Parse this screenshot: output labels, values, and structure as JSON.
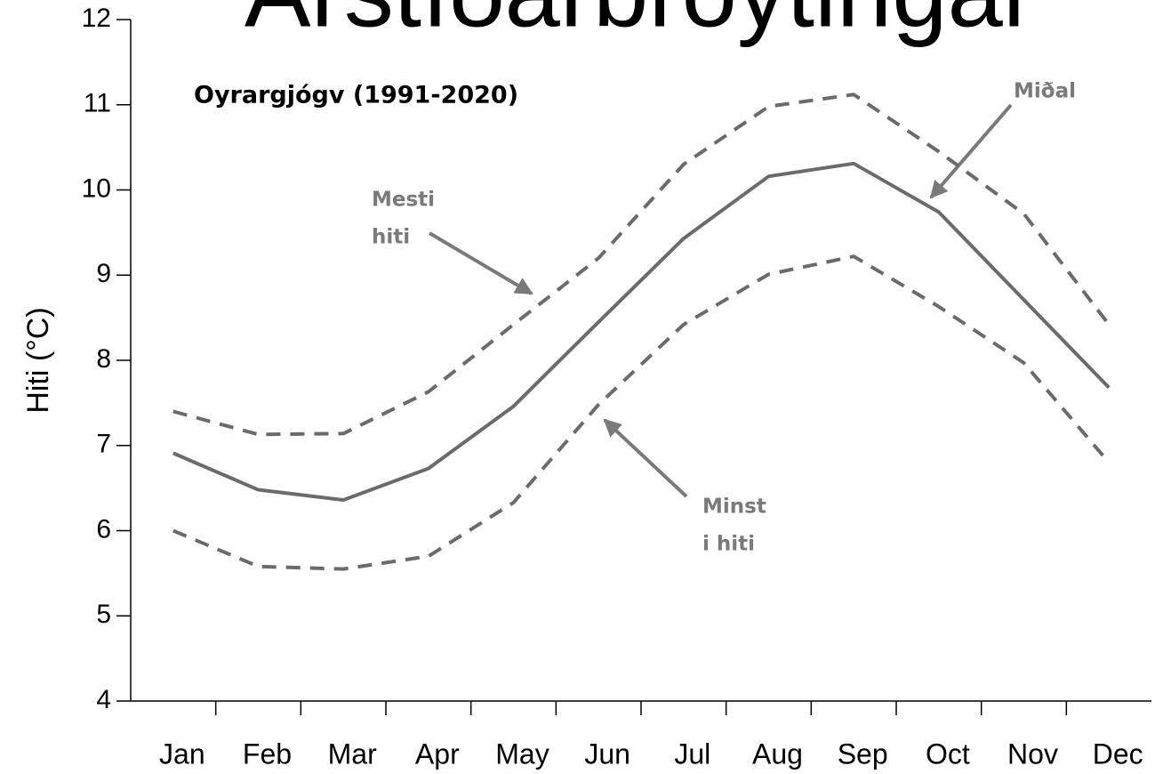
{
  "chart_data": {
    "type": "line",
    "title": "Árstíðarbroytingar",
    "subtitle": "Oyrargjógv (1991-2020)",
    "y_label": "Hiti (°C)",
    "categories": [
      "Jan",
      "Feb",
      "Mar",
      "Apr",
      "May",
      "Jun",
      "Jul",
      "Aug",
      "Sep",
      "Oct",
      "Nov",
      "Dec"
    ],
    "series": [
      {
        "name": "Mesti hiti",
        "color": "#6b6b6b",
        "dashed": true,
        "values": [
          7.4,
          7.13,
          7.14,
          7.63,
          8.42,
          9.2,
          10.3,
          10.98,
          11.12,
          10.45,
          9.72,
          8.42
        ]
      },
      {
        "name": "Miðal",
        "color": "#6b6b6b",
        "dashed": false,
        "values": [
          6.91,
          6.48,
          6.36,
          6.73,
          7.46,
          8.45,
          9.43,
          10.16,
          10.31,
          9.74,
          8.71,
          7.68
        ]
      },
      {
        "name": "Minst i hiti",
        "color": "#6b6b6b",
        "dashed": true,
        "values": [
          6.0,
          5.58,
          5.55,
          5.7,
          6.33,
          7.48,
          8.42,
          9.01,
          9.22,
          8.63,
          7.97,
          6.8
        ]
      }
    ],
    "annotations": [
      {
        "lines": [
          "Miðal"
        ]
      },
      {
        "lines": [
          "Mesti",
          "hiti"
        ]
      },
      {
        "lines": [
          "Minst",
          "i hiti"
        ]
      }
    ],
    "ylim": [
      4,
      12
    ],
    "yticks": [
      4,
      5,
      6,
      7,
      8,
      9,
      10,
      11,
      12
    ]
  }
}
